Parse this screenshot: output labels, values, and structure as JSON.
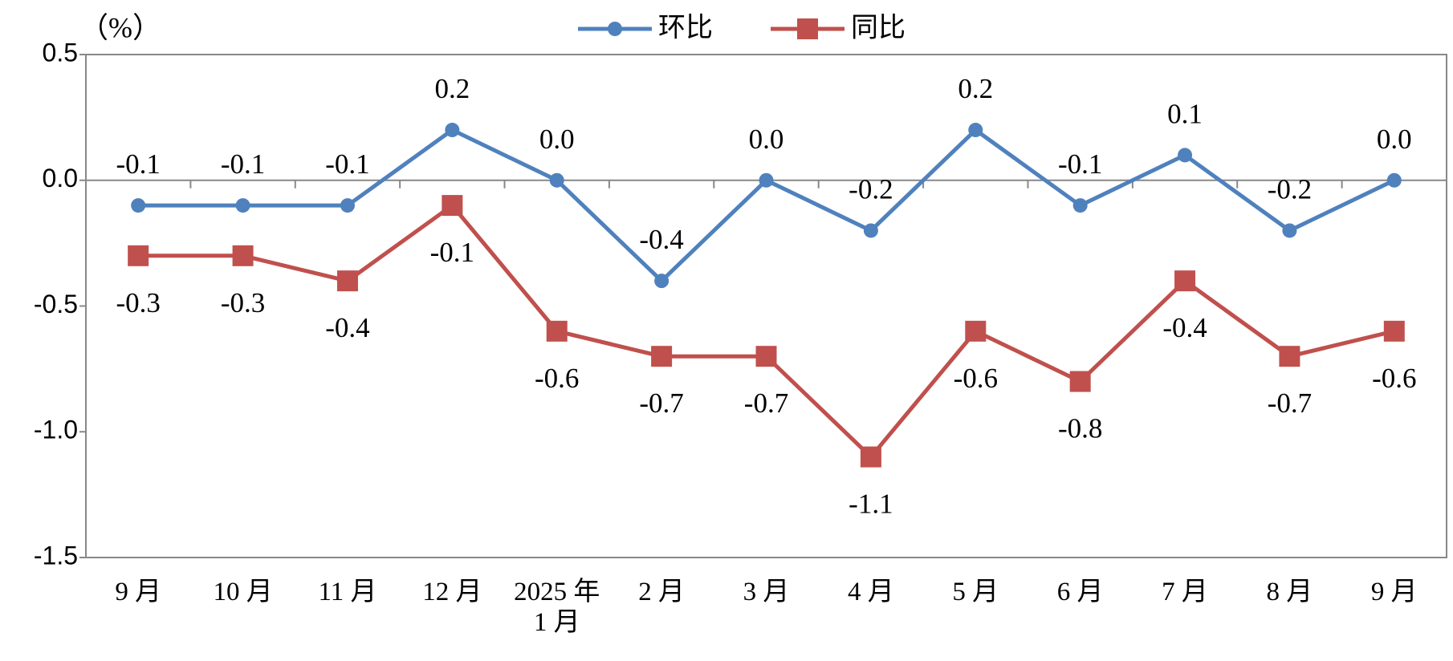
{
  "chart_data": {
    "type": "line",
    "y_label": "（%）",
    "categories": [
      "9 月",
      "10 月",
      "11 月",
      "12 月",
      "2025 年 1 月",
      "2 月",
      "3 月",
      "4 月",
      "5 月",
      "6 月",
      "7 月",
      "8 月",
      "9 月"
    ],
    "series": [
      {
        "name": "环比",
        "color": "#4f81bd",
        "marker": "circle",
        "values": [
          -0.1,
          -0.1,
          -0.1,
          0.2,
          0,
          -0.4,
          0,
          -0.2,
          0.2,
          -0.1,
          0.1,
          -0.2,
          0
        ],
        "value_labels": [
          "-0.1",
          "-0.1",
          "-0.1",
          "0.2",
          "0.0",
          "-0.4",
          "0.0",
          "-0.2",
          "0.2",
          "-0.1",
          "0.1",
          "-0.2",
          "0.0"
        ]
      },
      {
        "name": "同比",
        "color": "#c0504d",
        "marker": "square",
        "values": [
          -0.3,
          -0.3,
          -0.4,
          -0.1,
          -0.6,
          -0.7,
          -0.7,
          -1.1,
          -0.6,
          -0.8,
          -0.4,
          -0.7,
          -0.6
        ],
        "value_labels": [
          "-0.3",
          "-0.3",
          "-0.4",
          "-0.1",
          "-0.6",
          "-0.7",
          "-0.7",
          "-1.1",
          "-0.6",
          "-0.8",
          "-0.4",
          "-0.7",
          "-0.6"
        ]
      }
    ],
    "ylim": [
      -1.5,
      0.5
    ],
    "yticks": [
      0.5,
      {
        "value": 0,
        "label": "0.0"
      },
      -0.5,
      {
        "value": -1,
        "label": "-1.0"
      },
      -1.5
    ],
    "legend": "top"
  }
}
